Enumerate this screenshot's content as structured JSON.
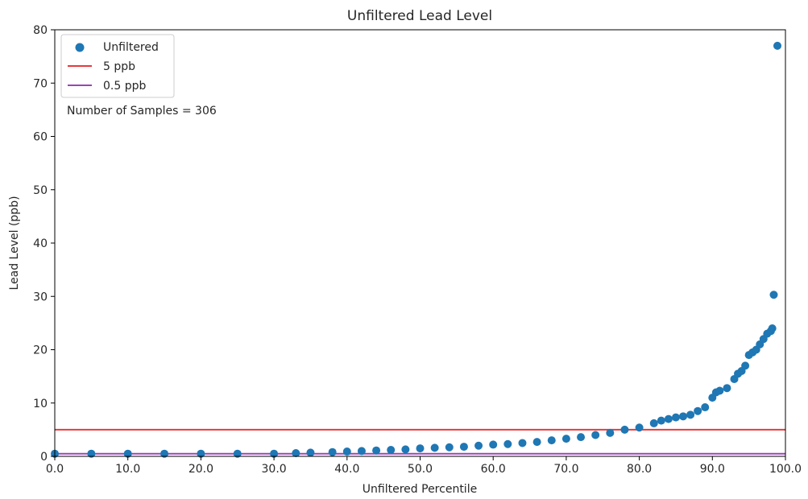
{
  "chart_data": {
    "type": "scatter",
    "title": "Unfiltered Lead Level",
    "xlabel": "Unfiltered Percentile",
    "ylabel": "Lead Level (ppb)",
    "xlim": [
      0,
      100
    ],
    "ylim": [
      0,
      80
    ],
    "xticks": [
      "0.0",
      "10.0",
      "20.0",
      "30.0",
      "40.0",
      "50.0",
      "60.0",
      "70.0",
      "80.0",
      "90.0",
      "100.0"
    ],
    "yticks": [
      "0",
      "10",
      "20",
      "30",
      "40",
      "50",
      "60",
      "70",
      "80"
    ],
    "grid": false,
    "legend_position": "top-left",
    "annotation": "Number of Samples = 306",
    "series": [
      {
        "name": "Unfiltered",
        "kind": "scatter",
        "color": "#1f77b4",
        "points": [
          [
            0.0,
            0.5
          ],
          [
            5.0,
            0.5
          ],
          [
            10.0,
            0.5
          ],
          [
            15.0,
            0.5
          ],
          [
            20.0,
            0.5
          ],
          [
            25.0,
            0.5
          ],
          [
            30.0,
            0.5
          ],
          [
            33.0,
            0.6
          ],
          [
            35.0,
            0.7
          ],
          [
            38.0,
            0.8
          ],
          [
            40.0,
            0.9
          ],
          [
            42.0,
            1.0
          ],
          [
            44.0,
            1.1
          ],
          [
            46.0,
            1.2
          ],
          [
            48.0,
            1.3
          ],
          [
            50.0,
            1.5
          ],
          [
            52.0,
            1.6
          ],
          [
            54.0,
            1.7
          ],
          [
            56.0,
            1.8
          ],
          [
            58.0,
            2.0
          ],
          [
            60.0,
            2.2
          ],
          [
            62.0,
            2.3
          ],
          [
            64.0,
            2.5
          ],
          [
            66.0,
            2.7
          ],
          [
            68.0,
            3.0
          ],
          [
            70.0,
            3.3
          ],
          [
            72.0,
            3.6
          ],
          [
            74.0,
            4.0
          ],
          [
            76.0,
            4.4
          ],
          [
            78.0,
            5.0
          ],
          [
            80.0,
            5.4
          ],
          [
            82.0,
            6.2
          ],
          [
            83.0,
            6.7
          ],
          [
            84.0,
            7.0
          ],
          [
            85.0,
            7.3
          ],
          [
            86.0,
            7.5
          ],
          [
            87.0,
            7.8
          ],
          [
            88.0,
            8.5
          ],
          [
            89.0,
            9.2
          ],
          [
            90.0,
            11.0
          ],
          [
            90.5,
            12.0
          ],
          [
            91.0,
            12.3
          ],
          [
            92.0,
            12.8
          ],
          [
            93.0,
            14.5
          ],
          [
            93.5,
            15.5
          ],
          [
            94.0,
            16.0
          ],
          [
            94.5,
            17.0
          ],
          [
            95.0,
            19.0
          ],
          [
            95.5,
            19.5
          ],
          [
            96.0,
            20.0
          ],
          [
            96.5,
            21.0
          ],
          [
            97.0,
            22.0
          ],
          [
            97.5,
            23.0
          ],
          [
            98.0,
            23.5
          ],
          [
            98.2,
            24.0
          ],
          [
            98.4,
            30.3
          ],
          [
            98.9,
            77.0
          ]
        ]
      },
      {
        "name": "5 ppb",
        "kind": "hline",
        "y": 5,
        "color": "#e8393a"
      },
      {
        "name": "0.5 ppb",
        "kind": "hline",
        "y": 0.5,
        "color": "#9a45b3"
      }
    ]
  }
}
